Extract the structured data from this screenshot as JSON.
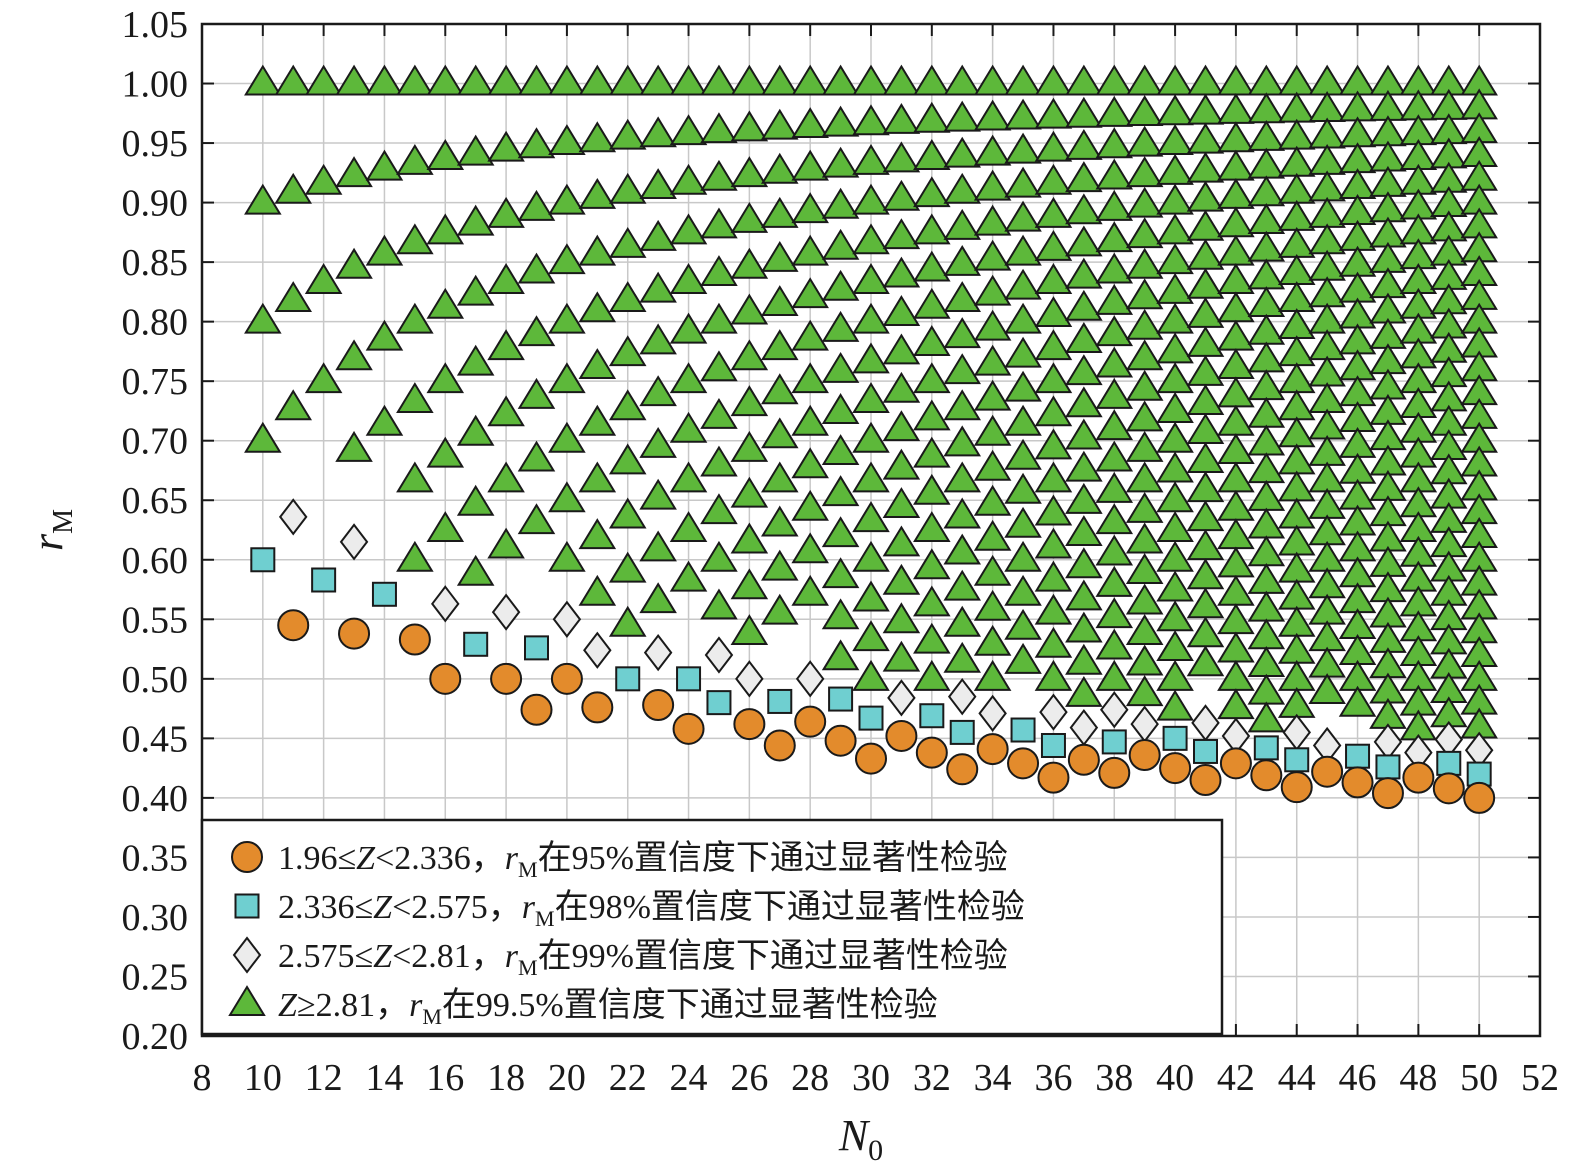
{
  "chart_data": {
    "type": "scatter",
    "xlabel": "N0",
    "ylabel": "rM",
    "xlim": [
      8,
      52
    ],
    "ylim": [
      0.2,
      1.05
    ],
    "x_ticks": [
      8,
      10,
      12,
      14,
      16,
      18,
      20,
      22,
      24,
      26,
      28,
      30,
      32,
      34,
      36,
      38,
      40,
      42,
      44,
      46,
      48,
      50,
      52
    ],
    "y_ticks": [
      0.2,
      0.25,
      0.3,
      0.35,
      0.4,
      0.45,
      0.5,
      0.55,
      0.6,
      0.65,
      0.7,
      0.75,
      0.8,
      0.85,
      0.9,
      0.95,
      1.0,
      1.05
    ],
    "grid": true,
    "legend_position": "bottom-left",
    "colors": {
      "circle": "#e38b2c",
      "square": "#6fcfd0",
      "diamond": "#ececec",
      "triangle": "#5db83a",
      "edge": "#1a1a1a"
    },
    "series": [
      {
        "marker": "circle",
        "legend_lines": [
          "1.96≤",
          "Z",
          "<2.336，",
          "r",
          "M",
          "在95%置信度下通过显著性检验"
        ],
        "points": [
          [
            11,
            0.545
          ],
          [
            13,
            0.538
          ],
          [
            15,
            0.533
          ],
          [
            16,
            0.5
          ],
          [
            18,
            0.5
          ],
          [
            19,
            0.474
          ],
          [
            20,
            0.5
          ],
          [
            21,
            0.476
          ],
          [
            23,
            0.478
          ],
          [
            24,
            0.458
          ],
          [
            26,
            0.462
          ],
          [
            27,
            0.444
          ],
          [
            28,
            0.464
          ],
          [
            29,
            0.448
          ],
          [
            30,
            0.433
          ],
          [
            31,
            0.452
          ],
          [
            32,
            0.438
          ],
          [
            33,
            0.424
          ],
          [
            34,
            0.441
          ],
          [
            35,
            0.429
          ],
          [
            36,
            0.417
          ],
          [
            37,
            0.432
          ],
          [
            38,
            0.421
          ],
          [
            39,
            0.436
          ],
          [
            40,
            0.425
          ],
          [
            41,
            0.415
          ],
          [
            42,
            0.429
          ],
          [
            43,
            0.419
          ],
          [
            44,
            0.409
          ],
          [
            45,
            0.422
          ],
          [
            46,
            0.413
          ],
          [
            47,
            0.404
          ],
          [
            48,
            0.417
          ],
          [
            49,
            0.408
          ],
          [
            50,
            0.4
          ]
        ]
      },
      {
        "marker": "square",
        "legend_lines": [
          "2.336≤",
          "Z",
          "<2.575，",
          "r",
          "M",
          "在98%置信度下通过显著性检验"
        ],
        "points": [
          [
            10,
            0.6
          ],
          [
            12,
            0.583
          ],
          [
            14,
            0.571
          ],
          [
            17,
            0.529
          ],
          [
            19,
            0.526
          ],
          [
            22,
            0.5
          ],
          [
            24,
            0.5
          ],
          [
            25,
            0.48
          ],
          [
            27,
            0.481
          ],
          [
            29,
            0.483
          ],
          [
            30,
            0.467
          ],
          [
            32,
            0.469
          ],
          [
            33,
            0.455
          ],
          [
            35,
            0.457
          ],
          [
            36,
            0.444
          ],
          [
            38,
            0.447
          ],
          [
            40,
            0.45
          ],
          [
            41,
            0.439
          ],
          [
            43,
            0.442
          ],
          [
            44,
            0.432
          ],
          [
            46,
            0.435
          ],
          [
            47,
            0.426
          ],
          [
            49,
            0.429
          ],
          [
            50,
            0.42
          ]
        ]
      },
      {
        "marker": "diamond",
        "legend_lines": [
          "2.575≤",
          "Z",
          "<2.81，",
          "r",
          "M",
          "在99%置信度下通过显著性检验"
        ],
        "points": [
          [
            11,
            0.636
          ],
          [
            13,
            0.615
          ],
          [
            16,
            0.563
          ],
          [
            18,
            0.556
          ],
          [
            20,
            0.55
          ],
          [
            21,
            0.524
          ],
          [
            23,
            0.522
          ],
          [
            25,
            0.52
          ],
          [
            26,
            0.5
          ],
          [
            28,
            0.5
          ],
          [
            31,
            0.484
          ],
          [
            33,
            0.485
          ],
          [
            34,
            0.471
          ],
          [
            36,
            0.472
          ],
          [
            37,
            0.459
          ],
          [
            38,
            0.474
          ],
          [
            39,
            0.462
          ],
          [
            41,
            0.463
          ],
          [
            42,
            0.452
          ],
          [
            44,
            0.455
          ],
          [
            45,
            0.444
          ],
          [
            47,
            0.447
          ],
          [
            48,
            0.438
          ],
          [
            49,
            0.449
          ],
          [
            50,
            0.44
          ]
        ]
      },
      {
        "marker": "triangle",
        "legend_lines": [
          "Z",
          "≥2.81，",
          "r",
          "M",
          "在99.5%置信度下通过显著性检验"
        ],
        "rule": "all points k/N for N = 10…50, k an integer, with r ≥ threshold(N) up to r = 1.00",
        "thresholds": {
          "10": 0.7,
          "11": 0.727,
          "12": 0.667,
          "13": 0.692,
          "14": 0.643,
          "15": 0.6,
          "16": 0.625,
          "17": 0.588,
          "18": 0.611,
          "19": 0.579,
          "20": 0.6,
          "21": 0.571,
          "22": 0.545,
          "23": 0.565,
          "24": 0.542,
          "25": 0.56,
          "26": 0.538,
          "27": 0.519,
          "28": 0.536,
          "29": 0.517,
          "30": 0.5,
          "31": 0.516,
          "32": 0.5,
          "33": 0.515,
          "34": 0.5,
          "35": 0.486,
          "36": 0.5,
          "37": 0.486,
          "38": 0.474,
          "39": 0.487,
          "40": 0.475,
          "41": 0.488,
          "42": 0.476,
          "43": 0.465,
          "44": 0.477,
          "45": 0.467,
          "46": 0.457,
          "47": 0.468,
          "48": 0.458,
          "49": 0.469,
          "50": 0.46
        }
      }
    ]
  }
}
